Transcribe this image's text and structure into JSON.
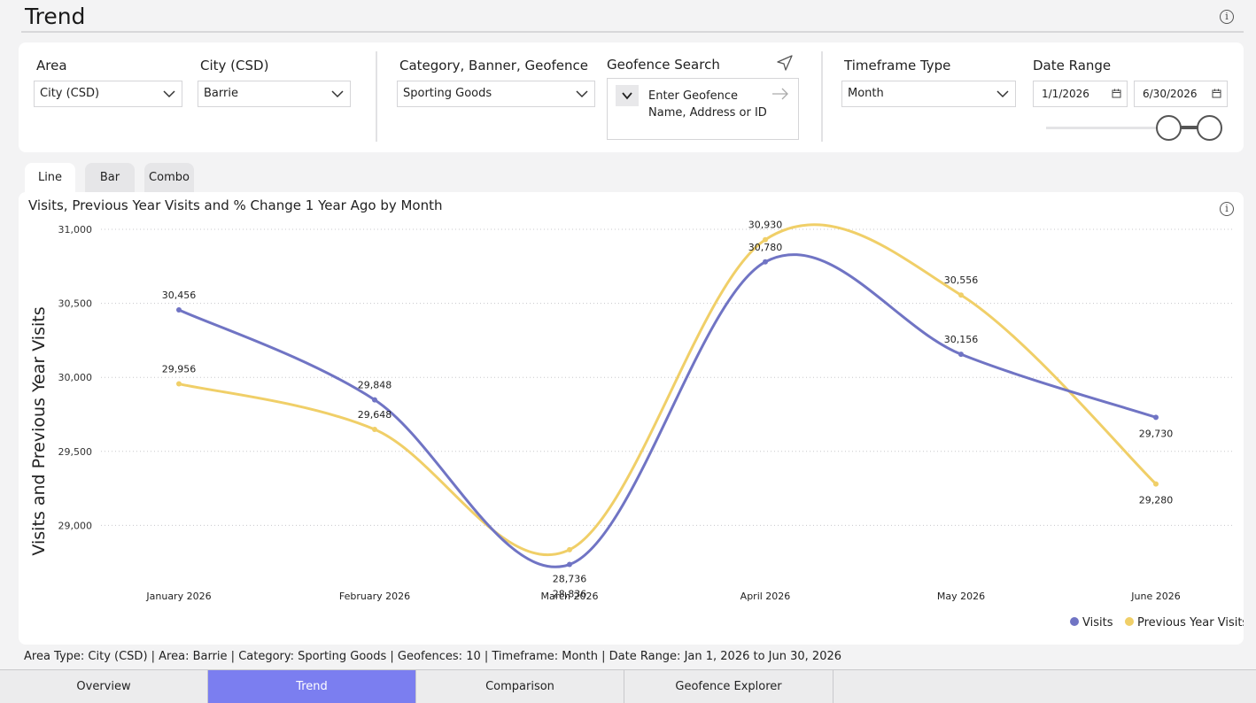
{
  "page": {
    "title": "Trend"
  },
  "filters": {
    "area": {
      "label": "Area",
      "value": "City (CSD)"
    },
    "city": {
      "label": "City (CSD)",
      "value": "Barrie"
    },
    "category": {
      "label": "Category, Banner, Geofence",
      "value": "Sporting Goods"
    },
    "geofence": {
      "label": "Geofence Search",
      "placeholder": "Enter Geofence Name, Address or ID"
    },
    "timeframe": {
      "label": "Timeframe Type",
      "value": "Month"
    },
    "date_range": {
      "label": "Date Range",
      "start": "1/1/2026",
      "end": "6/30/2026"
    }
  },
  "tabs": [
    {
      "label": "Line"
    },
    {
      "label": "Bar"
    },
    {
      "label": "Combo"
    }
  ],
  "chart": {
    "title": "Visits, Previous Year Visits and % Change 1 Year Ago by Month"
  },
  "chart_data": {
    "type": "line",
    "title": "Visits, Previous Year Visits and % Change 1 Year Ago by Month",
    "xlabel": "",
    "ylabel": "Visits and Previous Year Visits",
    "categories": [
      "January 2026",
      "February 2026",
      "March 2026",
      "April 2026",
      "May 2026",
      "June 2026"
    ],
    "ylim": [
      28500,
      31000
    ],
    "yticks": [
      29000,
      29500,
      30000,
      30500,
      31000
    ],
    "ytick_labels": [
      "29,000",
      "29,500",
      "30,000",
      "30,500",
      "31,000"
    ],
    "grid": "horizontal dotted",
    "legend_position": "bottom-right",
    "series": [
      {
        "name": "Visits",
        "color": "#7074c4",
        "values": [
          30456,
          29848,
          28736,
          30780,
          30156,
          29730
        ],
        "labels": [
          "30,456",
          "29,848",
          "28,736",
          "30,780",
          "30,156",
          "29,730"
        ]
      },
      {
        "name": "Previous Year Visits",
        "color": "#f0cf68",
        "values": [
          29956,
          29648,
          28836,
          30930,
          30556,
          29280
        ],
        "labels": [
          "29,956",
          "29,648",
          "28,836",
          "30,930",
          "30,556",
          "29,280"
        ]
      }
    ]
  },
  "footer": {
    "summary": "Area Type: City (CSD) | Area: Barrie | Category: Sporting Goods | Geofences: 10 | Timeframe: Month | Date Range: Jan 1, 2026 to Jun 30, 2026"
  },
  "bottom_tabs": [
    {
      "label": "Overview"
    },
    {
      "label": "Trend"
    },
    {
      "label": "Comparison"
    },
    {
      "label": "Geofence Explorer"
    }
  ],
  "colors": {
    "accent": "#7b7ef0",
    "visits": "#7074c4",
    "previous_year": "#f0cf68"
  },
  "icons": {
    "info": "info-icon",
    "dropdown": "chevron-down-icon",
    "locate": "navigation-arrow-icon",
    "submit": "arrow-right-icon",
    "calendar": "calendar-icon"
  }
}
